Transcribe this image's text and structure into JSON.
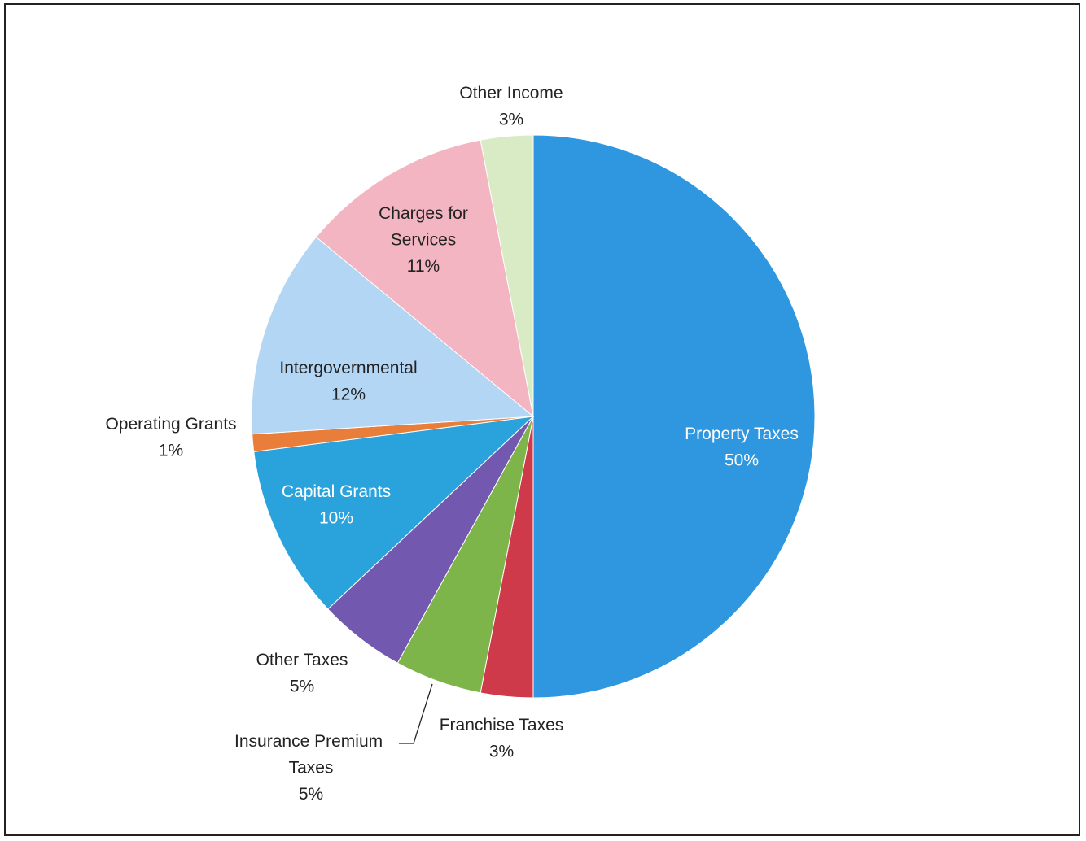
{
  "chart_data": {
    "type": "pie",
    "title": "",
    "slices": [
      {
        "label": "Property Taxes",
        "value": 50,
        "value_label": "50%",
        "color": "#2e97df"
      },
      {
        "label": "Franchise Taxes",
        "value": 3,
        "value_label": "3%",
        "color": "#cf3a4a"
      },
      {
        "label": "Insurance Premium Taxes",
        "value": 5,
        "value_label": "5%",
        "color": "#7eb54a"
      },
      {
        "label": "Other Taxes",
        "value": 5,
        "value_label": "5%",
        "color": "#7358b0"
      },
      {
        "label": "Capital Grants",
        "value": 10,
        "value_label": "10%",
        "color": "#2aa3dc"
      },
      {
        "label": "Operating Grants",
        "value": 1,
        "value_label": "1%",
        "color": "#e97d3a"
      },
      {
        "label": "Intergovernmental",
        "value": 12,
        "value_label": "12%",
        "color": "#b2d6f4"
      },
      {
        "label": "Charges for Services",
        "value": 11,
        "value_label": "11%",
        "color": "#f2b5c1"
      },
      {
        "label": "Other Income",
        "value": 3,
        "value_label": "3%",
        "color": "#d9ebc4"
      }
    ]
  }
}
